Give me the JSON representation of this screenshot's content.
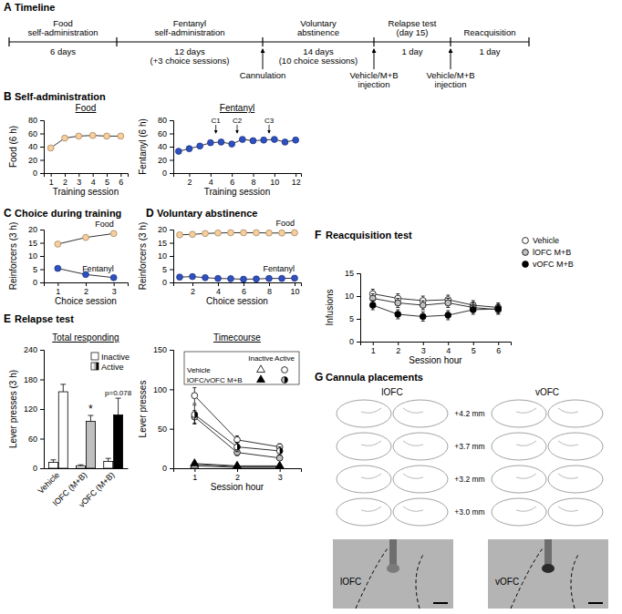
{
  "panels": [
    {
      "letter": "A",
      "title": "Timeline"
    },
    {
      "letter": "B",
      "title": "Self-administration"
    },
    {
      "letter": "C",
      "title": "Choice during training"
    },
    {
      "letter": "D",
      "title": "Voluntary abstinence"
    },
    {
      "letter": "E",
      "title": "Relapse test"
    },
    {
      "letter": "F",
      "title": "Reacquisition test"
    },
    {
      "letter": "G",
      "title": "Cannula placements"
    }
  ],
  "timeline": {
    "phases": [
      {
        "name": [
          "Food",
          "self-administration"
        ],
        "duration": [
          "6 days"
        ]
      },
      {
        "name": [
          "Fentanyl",
          "self-administration"
        ],
        "duration": [
          "12 days",
          "(+3 choice sessions)"
        ]
      },
      {
        "name": [
          "Voluntary",
          "abstinence"
        ],
        "duration": [
          "14 days",
          "(10 choice sessions)"
        ]
      },
      {
        "name": [
          "Relapse test",
          "(day 15)"
        ],
        "duration": [
          "1 day"
        ]
      },
      {
        "name": [
          "Reacquisition"
        ],
        "duration": [
          "1 day"
        ]
      }
    ],
    "events": [
      {
        "at_phase": 2,
        "label": [
          "Cannulation"
        ]
      },
      {
        "at_phase": 3,
        "label": [
          "Vehicle/M+B",
          "injection"
        ]
      },
      {
        "at_phase": 4,
        "label": [
          "Vehicle/M+B",
          "injection"
        ]
      }
    ]
  },
  "chart_data": [
    {
      "type": "line",
      "title": "Food",
      "xlabel": "Training session",
      "ylabel": "Food (6 h)",
      "x": [
        1,
        2,
        3,
        4,
        5,
        6
      ],
      "xlim": [
        0.5,
        6.5
      ],
      "xticks": [
        1,
        2,
        3,
        4,
        5,
        6
      ],
      "ylim": [
        0,
        80
      ],
      "yticks": [
        0,
        20,
        40,
        60,
        80
      ],
      "series": [
        {
          "color": "#f8cf9c",
          "marker": "circle",
          "values": [
            38,
            53,
            56,
            57,
            56,
            56
          ]
        }
      ]
    },
    {
      "type": "line",
      "title": "Fentanyl",
      "xlabel": "Training session",
      "ylabel": "Fentanyl (6 h)",
      "x": [
        1,
        2,
        3,
        4,
        5,
        6,
        7,
        8,
        9,
        10,
        11,
        12
      ],
      "xlim": [
        0.5,
        12.5
      ],
      "xticks": [
        2,
        4,
        6,
        8,
        10,
        12
      ],
      "ylim": [
        0,
        80
      ],
      "yticks": [
        0,
        20,
        40,
        60,
        80
      ],
      "series": [
        {
          "color": "#2e50c2",
          "marker": "circle",
          "values": [
            33,
            37,
            41,
            46,
            47,
            44,
            51,
            49,
            50,
            51,
            47,
            50
          ]
        }
      ],
      "annotations": [
        {
          "text": "C1",
          "x": 4.5
        },
        {
          "text": "C2",
          "x": 6.5
        },
        {
          "text": "C3",
          "x": 9.5
        }
      ]
    },
    {
      "type": "line",
      "xlabel": "Choice session",
      "ylabel": "Reinforcers (3 h)",
      "x": [
        1,
        2,
        3
      ],
      "xlim": [
        0.5,
        3.5
      ],
      "xticks": [
        1,
        2,
        3
      ],
      "ylim": [
        0,
        20
      ],
      "yticks": [
        0,
        5,
        10,
        15,
        20
      ],
      "legend": "inline",
      "series": [
        {
          "name": "Food",
          "color": "#f8cf9c",
          "marker": "circle",
          "values": [
            14.5,
            17,
            18.5
          ]
        },
        {
          "name": "Fentanyl",
          "color": "#2e50c2",
          "marker": "circle",
          "values": [
            5.3,
            3,
            1.8
          ]
        }
      ]
    },
    {
      "type": "line",
      "xlabel": "Choice session",
      "ylabel": "Reinforcers (3 h)",
      "x": [
        1,
        2,
        3,
        4,
        5,
        6,
        7,
        8,
        9,
        10
      ],
      "xlim": [
        0.5,
        10.5
      ],
      "xticks": [
        2,
        4,
        6,
        8,
        10
      ],
      "ylim": [
        0,
        20
      ],
      "yticks": [
        0,
        5,
        10,
        15,
        20
      ],
      "legend": "inline",
      "series": [
        {
          "name": "Food",
          "color": "#f8cf9c",
          "marker": "circle",
          "values": [
            18,
            18.2,
            18.5,
            18.7,
            18.8,
            18.8,
            18.8,
            18.7,
            18.7,
            18.8
          ]
        },
        {
          "name": "Fentanyl",
          "color": "#2e50c2",
          "marker": "circle",
          "values": [
            2,
            2.2,
            1.8,
            1.5,
            1.4,
            1.2,
            1.3,
            1.5,
            1.5,
            1.6
          ]
        }
      ]
    },
    {
      "type": "bar",
      "title": "Total responding",
      "ylabel": "Lever presses (3 h)",
      "categories": [
        "Vehicle",
        "lOFC (M+B)",
        "vOFC (M+B)"
      ],
      "ylim": [
        0,
        240
      ],
      "yticks": [
        0,
        60,
        120,
        180,
        240
      ],
      "legend": "top-right",
      "series": [
        {
          "name": "Inactive",
          "color": "#ffffff",
          "values": [
            12,
            5,
            14
          ],
          "errors": [
            5,
            2,
            6
          ]
        },
        {
          "name": "Active",
          "colors": [
            "#ffffff",
            "#bfbfbf",
            "#000000"
          ],
          "values": [
            155,
            95,
            108
          ],
          "errors": [
            15,
            12,
            34
          ]
        }
      ],
      "annotations": [
        {
          "text": "*",
          "category": 1,
          "y": 112
        },
        {
          "text": "p=0.078",
          "category": 2,
          "y": 147
        }
      ]
    },
    {
      "type": "line",
      "title": "Timecourse",
      "xlabel": "Session hour",
      "ylabel": "Lever presses",
      "x": [
        1,
        2,
        3
      ],
      "xlim": [
        0.5,
        3.5
      ],
      "xticks": [
        1,
        2,
        3
      ],
      "ylim": [
        0,
        150
      ],
      "yticks": [
        0,
        50,
        100,
        150
      ],
      "legend": "top-right",
      "legend_columns": [
        "Inactive",
        "Active"
      ],
      "legend_rows": [
        "Vehicle",
        "lOFC/vOFC M+B"
      ],
      "series": [
        {
          "color": "#ffffff",
          "marker": "triangle",
          "values": [
            5,
            2,
            2
          ]
        },
        {
          "color": "#bfbfbf",
          "marker": "triangle",
          "values": [
            3,
            1,
            1
          ]
        },
        {
          "color": "#000000",
          "marker": "triangle",
          "values": [
            6,
            3,
            3
          ]
        },
        {
          "color": "#ffffff",
          "marker": "circle",
          "values": [
            92,
            36,
            27
          ],
          "errors": [
            10,
            5,
            4
          ]
        },
        {
          "color": "#bfbfbf",
          "marker": "circle",
          "values": [
            65,
            20,
            13
          ],
          "errors": [
            8,
            4,
            3
          ]
        },
        {
          "color": "#000000",
          "marker": "half-circle",
          "values": [
            68,
            27,
            22
          ],
          "errors": [
            12,
            6,
            5
          ]
        }
      ]
    },
    {
      "type": "line",
      "xlabel": "Session hour",
      "ylabel": "Infusions",
      "x": [
        1,
        2,
        3,
        4,
        5,
        6
      ],
      "xlim": [
        0.5,
        6.5
      ],
      "xticks": [
        1,
        2,
        3,
        4,
        5,
        6
      ],
      "ylim": [
        0,
        15
      ],
      "yticks": [
        0,
        5,
        10,
        15
      ],
      "legend": "top-right",
      "series": [
        {
          "name": "Vehicle",
          "color": "#ffffff",
          "marker": "circle",
          "values": [
            10.5,
            9.5,
            9,
            9.2,
            8,
            7.5
          ],
          "errors": [
            1,
            1,
            1,
            1,
            1,
            1
          ]
        },
        {
          "name": "lOFC M+B",
          "color": "#bfbfbf",
          "marker": "circle",
          "values": [
            9.5,
            8.5,
            8,
            8.5,
            7.5,
            7
          ],
          "errors": [
            1,
            1,
            1,
            1,
            1,
            1
          ]
        },
        {
          "name": "vOFC M+B",
          "color": "#000000",
          "marker": "circle",
          "values": [
            8,
            6,
            5.5,
            5.8,
            7,
            7.2
          ],
          "errors": [
            1,
            1,
            1,
            1,
            1,
            1
          ]
        }
      ]
    }
  ],
  "placements": {
    "regions": [
      "lOFC",
      "vOFC"
    ],
    "levels": [
      "+4.2 mm",
      "+3.7 mm",
      "+3.2 mm",
      "+3.0 mm"
    ],
    "photo_labels": [
      "lOFC",
      "vOFC"
    ]
  }
}
